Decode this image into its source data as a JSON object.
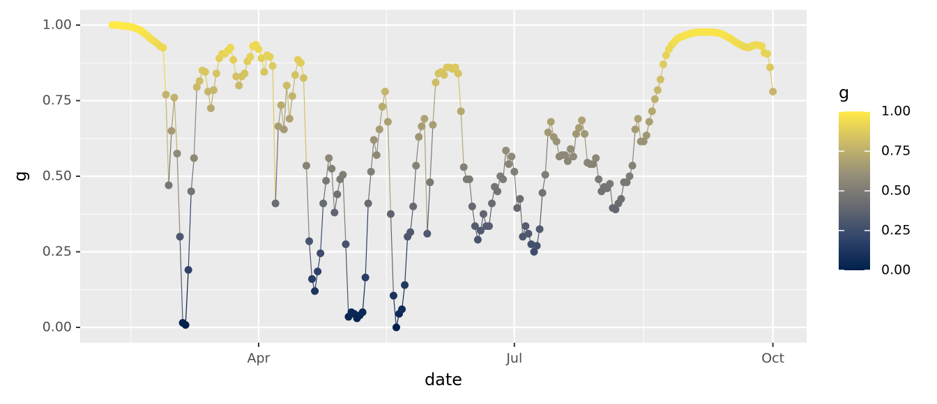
{
  "chart_data": {
    "type": "line",
    "xlabel": "date",
    "ylabel": "g",
    "xlim": [
      27.5,
      286
    ],
    "xticks": [
      {
        "value": 91,
        "label": "Apr"
      },
      {
        "value": 182,
        "label": "Jul"
      },
      {
        "value": 274,
        "label": "Oct"
      }
    ],
    "ylim": [
      -0.0507,
      1.0507
    ],
    "yticks": [
      {
        "value": 0,
        "label": "0.00"
      },
      {
        "value": 0.25,
        "label": "0.25"
      },
      {
        "value": 0.5,
        "label": "0.50"
      },
      {
        "value": 0.75,
        "label": "0.75"
      },
      {
        "value": 1,
        "label": "1.00"
      }
    ],
    "grid": true,
    "background": "#EBEBEB",
    "color_scale": {
      "title": "g",
      "colors": [
        "#00204D",
        "#31446B",
        "#666970",
        "#958F78",
        "#CBBA69",
        "#FFEA46"
      ],
      "limits": [
        0,
        1
      ],
      "ticks": [
        {
          "value": 0,
          "label": "0.00"
        },
        {
          "value": 0.25,
          "label": "0.25"
        },
        {
          "value": 0.5,
          "label": "0.50"
        },
        {
          "value": 0.75,
          "label": "0.75"
        },
        {
          "value": 1,
          "label": "1.00"
        }
      ]
    },
    "x": [
      39,
      40,
      41,
      42,
      43,
      44,
      45,
      46,
      47,
      48,
      49,
      50,
      51,
      52,
      53,
      54,
      55,
      56,
      57,
      58,
      59,
      60,
      61,
      62,
      63,
      64,
      65,
      66,
      67,
      68,
      69,
      70,
      71,
      72,
      73,
      74,
      75,
      76,
      77,
      78,
      79,
      80,
      81,
      82,
      83,
      84,
      85,
      86,
      87,
      88,
      89,
      90,
      91,
      92,
      93,
      94,
      95,
      96,
      97,
      98,
      99,
      100,
      101,
      102,
      103,
      104,
      105,
      106,
      107,
      108,
      109,
      110,
      111,
      112,
      113,
      114,
      115,
      116,
      117,
      118,
      119,
      120,
      121,
      122,
      123,
      124,
      125,
      126,
      127,
      128,
      129,
      130,
      131,
      132,
      133,
      134,
      135,
      136,
      137,
      138,
      139,
      140,
      141,
      142,
      143,
      144,
      145,
      146,
      147,
      148,
      149,
      150,
      151,
      152,
      153,
      154,
      155,
      156,
      157,
      158,
      159,
      160,
      161,
      162,
      163,
      164,
      165,
      166,
      167,
      168,
      169,
      170,
      171,
      172,
      173,
      174,
      175,
      176,
      177,
      178,
      179,
      180,
      181,
      182,
      183,
      184,
      185,
      186,
      187,
      188,
      189,
      190,
      191,
      192,
      193,
      194,
      195,
      196,
      197,
      198,
      199,
      200,
      201,
      202,
      203,
      204,
      205,
      206,
      207,
      208,
      209,
      210,
      211,
      212,
      213,
      214,
      215,
      216,
      217,
      218,
      219,
      220,
      221,
      222,
      223,
      224,
      225,
      226,
      227,
      228,
      229,
      230,
      231,
      232,
      233,
      234,
      235,
      236,
      237,
      238,
      239,
      240,
      241,
      242,
      243,
      244,
      245,
      246,
      247,
      248,
      249,
      250,
      251,
      252,
      253,
      254,
      255,
      256,
      257,
      258,
      259,
      260,
      261,
      262,
      263,
      264,
      265,
      266,
      267,
      268,
      269,
      270,
      271,
      272,
      273,
      274
    ],
    "values": [
      1.0,
      1.0,
      1.0,
      0.998,
      0.997,
      0.996,
      0.995,
      0.993,
      0.99,
      0.987,
      0.982,
      0.975,
      0.968,
      0.96,
      0.952,
      0.945,
      0.938,
      0.93,
      0.925,
      0.77,
      0.47,
      0.65,
      0.76,
      0.575,
      0.3,
      0.015,
      0.008,
      0.19,
      0.45,
      0.56,
      0.795,
      0.815,
      0.85,
      0.845,
      0.78,
      0.725,
      0.785,
      0.84,
      0.89,
      0.905,
      0.905,
      0.915,
      0.925,
      0.885,
      0.83,
      0.8,
      0.83,
      0.84,
      0.88,
      0.895,
      0.93,
      0.935,
      0.92,
      0.89,
      0.845,
      0.9,
      0.895,
      0.865,
      0.41,
      0.665,
      0.735,
      0.655,
      0.8,
      0.69,
      0.765,
      0.835,
      0.885,
      0.875,
      0.825,
      0.535,
      0.285,
      0.16,
      0.12,
      0.185,
      0.245,
      0.41,
      0.485,
      0.56,
      0.525,
      0.38,
      0.44,
      0.49,
      0.505,
      0.275,
      0.035,
      0.05,
      0.045,
      0.03,
      0.04,
      0.05,
      0.165,
      0.41,
      0.515,
      0.62,
      0.57,
      0.655,
      0.73,
      0.78,
      0.68,
      0.375,
      0.105,
      0.0,
      0.045,
      0.06,
      0.14,
      0.3,
      0.315,
      0.4,
      0.535,
      0.63,
      0.665,
      0.69,
      0.31,
      0.48,
      0.67,
      0.81,
      0.84,
      0.845,
      0.835,
      0.86,
      0.86,
      0.855,
      0.86,
      0.84,
      0.715,
      0.53,
      0.49,
      0.49,
      0.4,
      0.335,
      0.29,
      0.32,
      0.375,
      0.335,
      0.335,
      0.41,
      0.465,
      0.45,
      0.5,
      0.49,
      0.585,
      0.54,
      0.565,
      0.515,
      0.395,
      0.425,
      0.3,
      0.335,
      0.31,
      0.275,
      0.25,
      0.27,
      0.325,
      0.445,
      0.505,
      0.645,
      0.68,
      0.63,
      0.615,
      0.565,
      0.57,
      0.57,
      0.55,
      0.59,
      0.565,
      0.64,
      0.66,
      0.685,
      0.64,
      0.545,
      0.54,
      0.54,
      0.56,
      0.49,
      0.45,
      0.465,
      0.46,
      0.475,
      0.395,
      0.39,
      0.41,
      0.425,
      0.48,
      0.48,
      0.5,
      0.535,
      0.655,
      0.69,
      0.615,
      0.615,
      0.635,
      0.68,
      0.715,
      0.755,
      0.785,
      0.82,
      0.87,
      0.9,
      0.92,
      0.935,
      0.945,
      0.955,
      0.96,
      0.963,
      0.967,
      0.97,
      0.973,
      0.975,
      0.976,
      0.977,
      0.977,
      0.977,
      0.977,
      0.977,
      0.976,
      0.975,
      0.973,
      0.97,
      0.965,
      0.96,
      0.955,
      0.948,
      0.942,
      0.937,
      0.932,
      0.928,
      0.926,
      0.928,
      0.932,
      0.935,
      0.933,
      0.93,
      0.908,
      0.905,
      0.86,
      0.78
    ]
  }
}
